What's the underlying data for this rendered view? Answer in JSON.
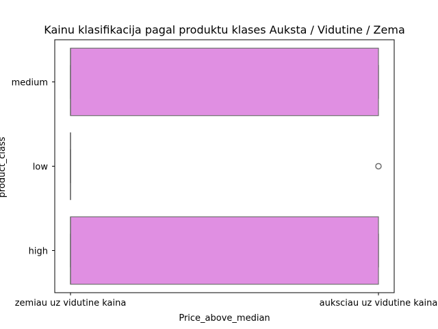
{
  "chart_data": {
    "type": "boxplot",
    "orientation": "horizontal",
    "title": "Kainu klasifikacija pagal produktu klases Auksta / Vidutine / Zema",
    "xlabel": "Price_above_median",
    "ylabel": "product_class",
    "x_categories": [
      "zemiau uz vidutine kaina",
      "auksciau uz vidutine kaina"
    ],
    "x_values": [
      0,
      1
    ],
    "grid": false,
    "colors": {
      "box": "#e08fe2",
      "edge": "#6e6e6e"
    },
    "series": [
      {
        "category": "medium",
        "min": 0,
        "q1": 0,
        "median": 0,
        "q3": 1,
        "max": 1,
        "outliers": []
      },
      {
        "category": "low",
        "min": 0,
        "q1": 0,
        "median": 0,
        "q3": 0,
        "max": 0,
        "outliers": [
          1
        ]
      },
      {
        "category": "high",
        "min": 0,
        "q1": 0,
        "median": 0,
        "q3": 1,
        "max": 1,
        "outliers": []
      }
    ]
  }
}
